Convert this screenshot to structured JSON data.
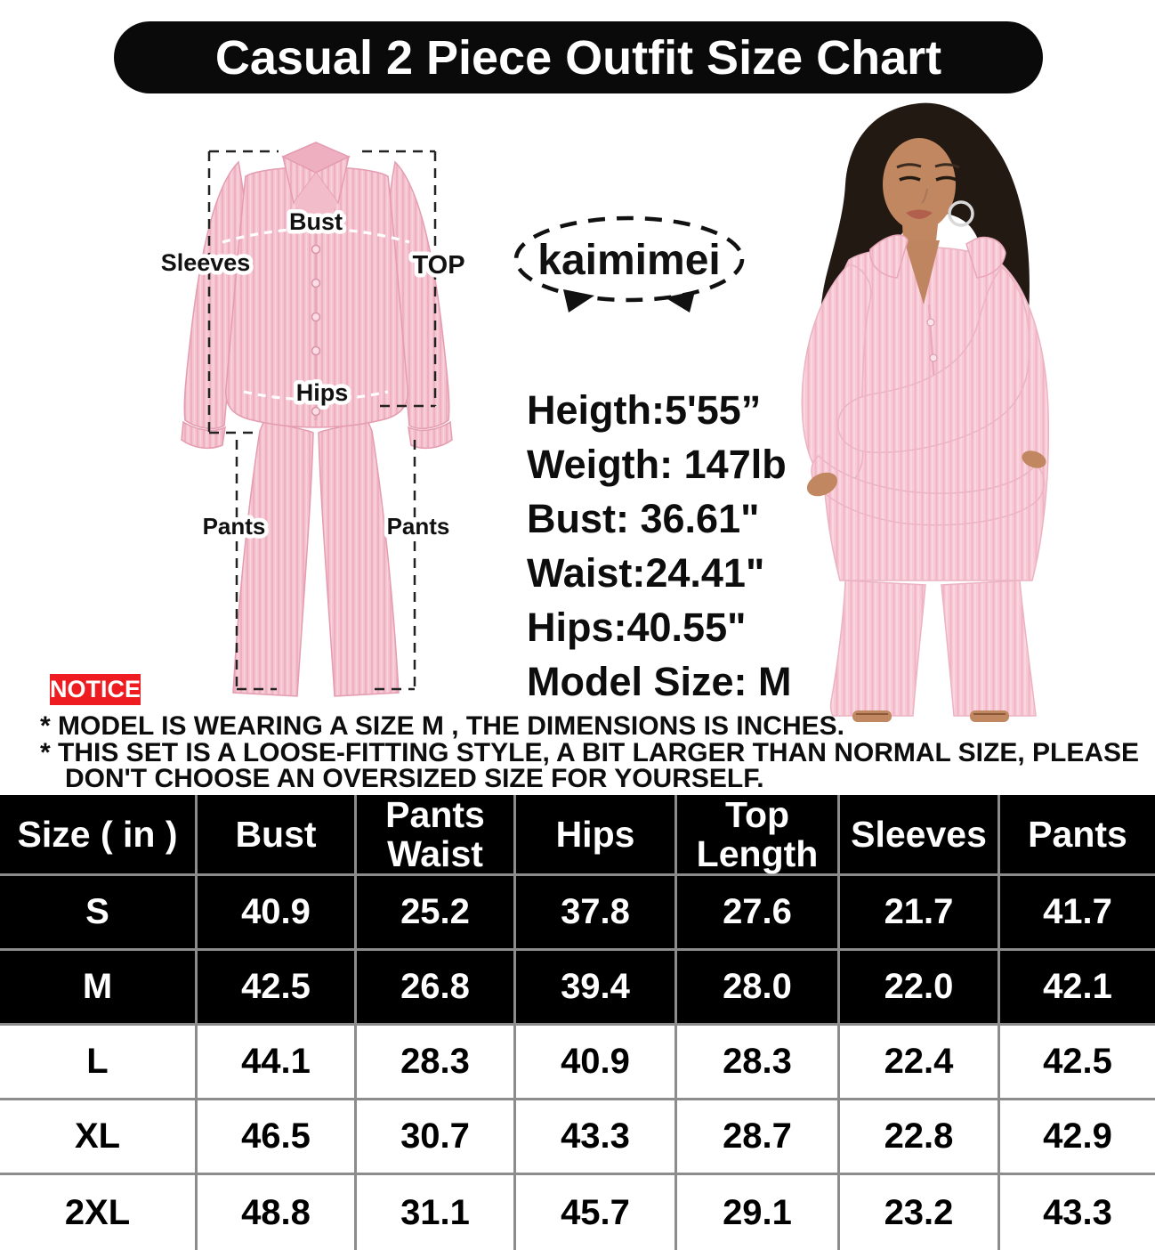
{
  "title": "Casual 2 Piece Outfit Size Chart",
  "brand_logo": {
    "text": "kaimimei"
  },
  "garment_diagram": {
    "labels": {
      "bust": "Bust",
      "sleeves": "Sleeves",
      "top": "TOP",
      "hips": "Hips",
      "pants_left": "Pants",
      "pants_right": "Pants"
    }
  },
  "model_info": {
    "lines": [
      "Heigth:5'55”",
      "Weigth: 147lb",
      "Bust: 36.61\"",
      "Waist:24.41\"",
      "Hips:40.55\"",
      "Model Size: M"
    ]
  },
  "notice": {
    "label": "NOTICE",
    "lines": [
      "* MODEL IS WEARING A SIZE  M ,  THE DIMENSIONS IS INCHES.",
      "* THIS SET IS A LOOSE-FITTING STYLE, A BIT LARGER THAN NORMAL SIZE, PLEASE",
      "DON'T CHOOSE AN OVERSIZED SIZE FOR YOURSELF."
    ]
  },
  "chart_data": {
    "type": "table",
    "title": "Casual 2 Piece Outfit Size Chart",
    "unit": "inches",
    "columns": [
      "Size ( in )",
      "Bust",
      "Pants\nWaist",
      "Hips",
      "Top\nLength",
      "Sleeves",
      "Pants"
    ],
    "rows": [
      {
        "size": "S",
        "theme": "dark",
        "values": [
          "40.9",
          "25.2",
          "37.8",
          "27.6",
          "21.7",
          "41.7"
        ]
      },
      {
        "size": "M",
        "theme": "dark",
        "values": [
          "42.5",
          "26.8",
          "39.4",
          "28.0",
          "22.0",
          "42.1"
        ]
      },
      {
        "size": "L",
        "theme": "light",
        "values": [
          "44.1",
          "28.3",
          "40.9",
          "28.3",
          "22.4",
          "42.5"
        ]
      },
      {
        "size": "XL",
        "theme": "light",
        "values": [
          "46.5",
          "30.7",
          "43.3",
          "28.7",
          "22.8",
          "42.9"
        ]
      },
      {
        "size": "2XL",
        "theme": "light",
        "values": [
          "48.8",
          "31.1",
          "45.7",
          "29.1",
          "23.2",
          "43.3"
        ]
      }
    ]
  },
  "colors": {
    "accent_red": "#ee1b20",
    "garment_pink": "#f5c3cf",
    "table_header_bg": "#000000",
    "table_grid_line": "#8c8c8c"
  }
}
